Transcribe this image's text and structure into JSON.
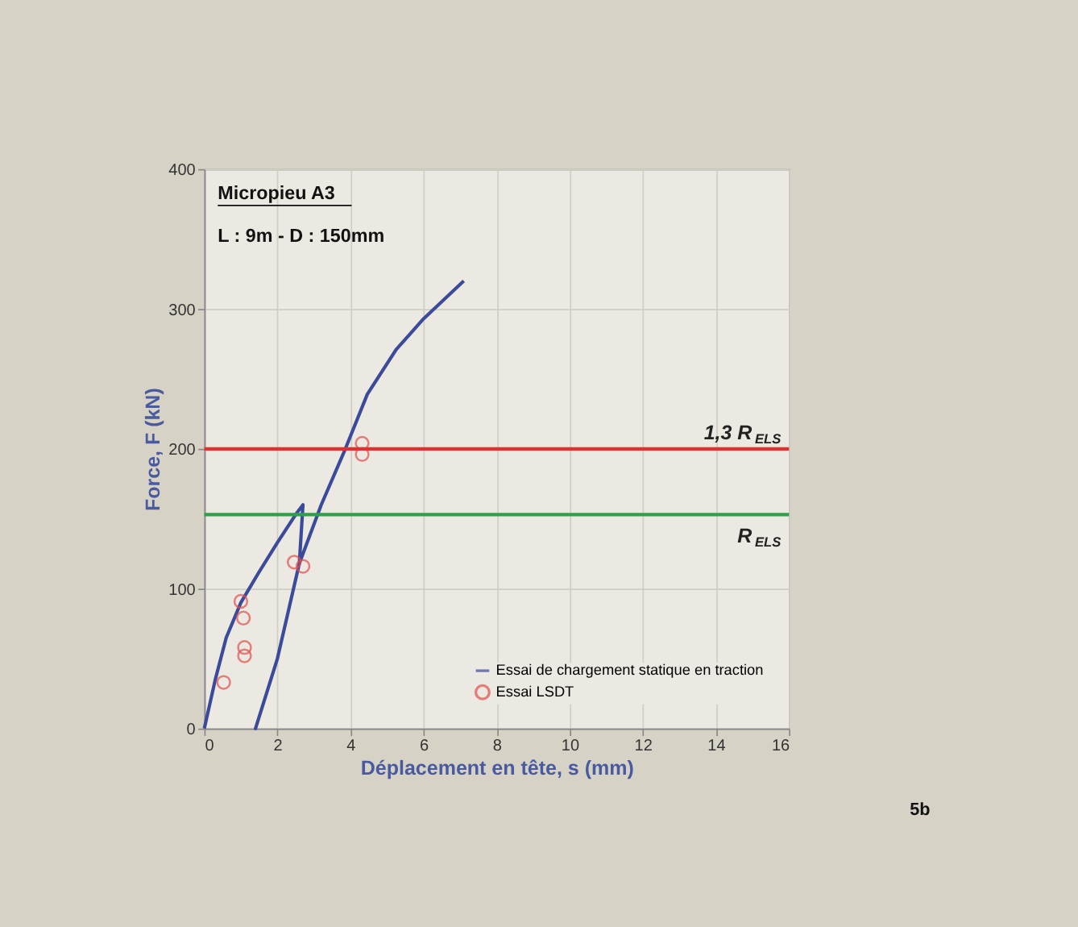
{
  "chart_data": {
    "type": "line",
    "xlabel": "Déplacement en tête,  s (mm)",
    "ylabel": "Force, F (kN)",
    "annotations": [
      "Micropieu A3",
      "L : 9m  - D : 150mm",
      "5b"
    ],
    "xlim": [
      0,
      16
    ],
    "xticks": [
      0,
      2,
      4,
      6,
      8,
      10,
      12,
      14,
      16
    ],
    "ylim": [
      0,
      400
    ],
    "yticks": [
      0,
      100,
      200,
      300,
      400
    ],
    "grid": true,
    "legend": "bottom right",
    "series": [
      {
        "name": "Essai de chargement statique en traction",
        "color": "#3b4a9a",
        "line_style": "solid",
        "marker": "none",
        "x": [
          0,
          0.3,
          0.6,
          1.0,
          1.5,
          2.0,
          2.5,
          2.7,
          2.6,
          2.0,
          1.4,
          2.0,
          2.6,
          3.2,
          3.86,
          4.46,
          5.25,
          6.0,
          7.1
        ],
        "values": [
          0,
          35,
          65,
          90,
          112,
          133,
          153,
          160,
          118,
          50,
          0,
          50,
          118,
          160,
          200,
          239,
          271,
          293,
          320
        ]
      },
      {
        "name": "Essai LSDT",
        "type": "scatter",
        "color": "#e05050",
        "marker": "circle",
        "x": [
          0.53,
          1.0,
          1.07,
          1.1,
          1.1,
          2.46,
          2.7,
          4.32,
          4.32
        ],
        "values": [
          33,
          91,
          79,
          58,
          52,
          119,
          116,
          204,
          196
        ]
      }
    ],
    "ref_lines": [
      {
        "axis": "y",
        "value": 200,
        "label": "1,3 R$_{ELS}$",
        "color": "#e03030"
      },
      {
        "axis": "y",
        "value": 153,
        "label": "R$_{ELS}$",
        "color": "#2ea04a"
      }
    ]
  }
}
